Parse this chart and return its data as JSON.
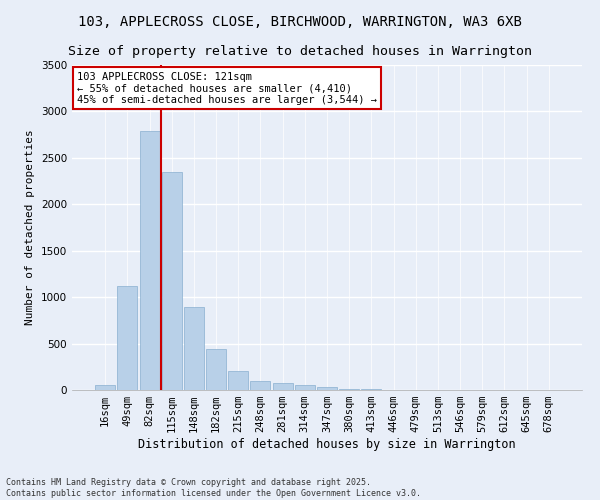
{
  "title": "103, APPLECROSS CLOSE, BIRCHWOOD, WARRINGTON, WA3 6XB",
  "subtitle": "Size of property relative to detached houses in Warrington",
  "xlabel": "Distribution of detached houses by size in Warrington",
  "ylabel": "Number of detached properties",
  "categories": [
    "16sqm",
    "49sqm",
    "82sqm",
    "115sqm",
    "148sqm",
    "182sqm",
    "215sqm",
    "248sqm",
    "281sqm",
    "314sqm",
    "347sqm",
    "380sqm",
    "413sqm",
    "446sqm",
    "479sqm",
    "513sqm",
    "546sqm",
    "579sqm",
    "612sqm",
    "645sqm",
    "678sqm"
  ],
  "values": [
    50,
    1120,
    2790,
    2350,
    890,
    440,
    200,
    100,
    75,
    50,
    30,
    15,
    10,
    5,
    5,
    3,
    2,
    2,
    1,
    1,
    1
  ],
  "bar_color": "#b8d0e8",
  "bar_edgecolor": "#8ab0d0",
  "vline_x_index": 3,
  "vline_color": "#cc0000",
  "annotation_text": "103 APPLECROSS CLOSE: 121sqm\n← 55% of detached houses are smaller (4,410)\n45% of semi-detached houses are larger (3,544) →",
  "annotation_box_color": "#cc0000",
  "ylim": [
    0,
    3500
  ],
  "yticks": [
    0,
    500,
    1000,
    1500,
    2000,
    2500,
    3000,
    3500
  ],
  "footnote": "Contains HM Land Registry data © Crown copyright and database right 2025.\nContains public sector information licensed under the Open Government Licence v3.0.",
  "background_color": "#e8eef8",
  "grid_color": "#ffffff",
  "title_fontsize": 10,
  "subtitle_fontsize": 9.5,
  "xlabel_fontsize": 8.5,
  "ylabel_fontsize": 8,
  "tick_fontsize": 7.5,
  "annotation_fontsize": 7.5,
  "footnote_fontsize": 6
}
